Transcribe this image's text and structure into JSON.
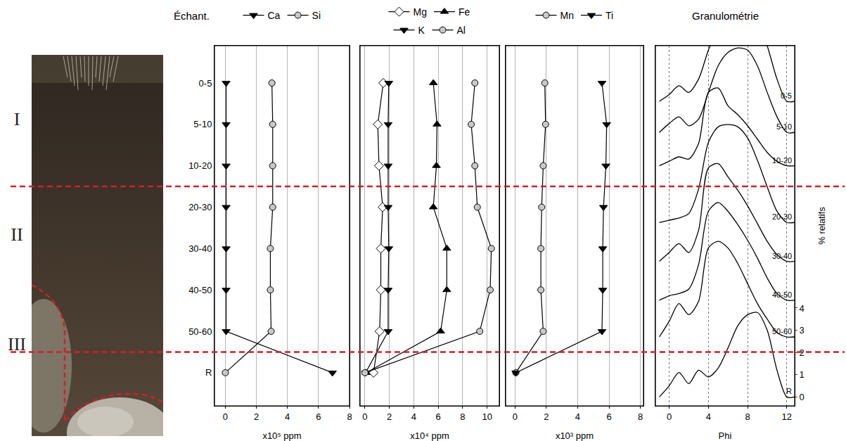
{
  "profile": {
    "horizons": [
      "I",
      "II",
      "III"
    ],
    "boundaries_after": [
      "10-20",
      "50-60"
    ]
  },
  "chart_data": [
    {
      "type": "line",
      "orientation": "horizontal",
      "ylabel": "Échant.",
      "xlabel": "x10⁵ ppm",
      "categories": [
        "0-5",
        "5-10",
        "10-20",
        "20-30",
        "30-40",
        "40-50",
        "50-60",
        "R"
      ],
      "xlim": [
        -0.7,
        8
      ],
      "xticks": [
        0,
        2,
        4,
        6,
        8
      ],
      "grid": true,
      "legend": "top",
      "series": [
        {
          "name": "Ca",
          "color": "#000000",
          "marker": "triangle-down",
          "values": [
            0.05,
            0.05,
            0.05,
            0.05,
            0.05,
            0.05,
            0.05,
            6.9
          ]
        },
        {
          "name": "Si",
          "color": "#000000",
          "marker": "circle",
          "values": [
            3.0,
            3.05,
            3.05,
            3.05,
            2.9,
            2.9,
            2.95,
            0
          ]
        }
      ]
    },
    {
      "type": "line",
      "orientation": "horizontal",
      "xlabel": "x10⁴ ppm",
      "tick_labels": "x",
      "categories": [
        "0-5",
        "5-10",
        "10-20",
        "20-30",
        "30-40",
        "40-50",
        "50-60",
        "R"
      ],
      "xlim": [
        -0.4,
        11
      ],
      "xticks": [
        0,
        2,
        4,
        6,
        8,
        10
      ],
      "grid": true,
      "legend": "top",
      "series": [
        {
          "name": "Mg",
          "color": "#000000",
          "marker": "diamond-open",
          "values": [
            1.5,
            1.05,
            1.15,
            1.45,
            1.3,
            1.3,
            1.2,
            0.7
          ]
        },
        {
          "name": "Fe",
          "color": "#000000",
          "marker": "triangle-up",
          "values": [
            5.6,
            5.9,
            5.85,
            5.6,
            6.7,
            6.7,
            6.2,
            0.1
          ]
        },
        {
          "name": "K",
          "color": "#000000",
          "marker": "triangle-down",
          "values": [
            1.95,
            1.9,
            1.9,
            1.9,
            1.95,
            1.9,
            1.9,
            0.05
          ]
        },
        {
          "name": "Al",
          "color": "#000000",
          "marker": "circle",
          "values": [
            9.0,
            8.7,
            9.0,
            9.2,
            10.35,
            10.25,
            9.4,
            0
          ]
        }
      ]
    },
    {
      "type": "line",
      "orientation": "horizontal",
      "xlabel": "x10³ ppm",
      "tick_labels": "x",
      "categories": [
        "0-5",
        "5-10",
        "10-20",
        "20-30",
        "30-40",
        "40-50",
        "50-60",
        "R"
      ],
      "xlim": [
        -0.6,
        8.2
      ],
      "xticks": [
        0,
        2,
        4,
        6,
        8
      ],
      "grid": true,
      "legend": "top",
      "series": [
        {
          "name": "Mn",
          "color": "#000000",
          "marker": "circle",
          "values": [
            1.9,
            1.95,
            1.8,
            1.7,
            1.65,
            1.65,
            1.8,
            0.05
          ]
        },
        {
          "name": "Ti",
          "color": "#000000",
          "marker": "triangle-down",
          "values": [
            5.55,
            5.85,
            5.8,
            5.65,
            5.6,
            5.6,
            5.55,
            0.05
          ]
        }
      ]
    },
    {
      "type": "line",
      "title": "Granulométrie",
      "xlabel": "Phi",
      "ylabel": "% relatifs",
      "x": [
        -1,
        0,
        1,
        2,
        3,
        4,
        5,
        6,
        7,
        8,
        9,
        10,
        11,
        12
      ],
      "xlim": [
        -1.4,
        12.8
      ],
      "xticks": [
        0,
        4,
        8,
        12
      ],
      "ylim": [
        -0.4,
        15.8
      ],
      "yticks": [
        0,
        1,
        2,
        3,
        4
      ],
      "grid": true,
      "series": [
        {
          "name": "0-5",
          "color": "#000000",
          "baseline": 13.3,
          "values": [
            0,
            0.3,
            0.7,
            0.4,
            1.0,
            2.3,
            3.3,
            3.8,
            4.0,
            4.1,
            3.7,
            2.5,
            1.0,
            0
          ]
        },
        {
          "name": "5-10",
          "color": "#000000",
          "baseline": 11.9,
          "values": [
            0,
            0.4,
            0.7,
            0.3,
            0.6,
            1.8,
            3.0,
            3.6,
            3.8,
            3.7,
            3.0,
            1.8,
            0.7,
            0
          ]
        },
        {
          "name": "10-20",
          "color": "#000000",
          "baseline": 10.4,
          "values": [
            0,
            0.2,
            0.4,
            0.3,
            1.0,
            3.3,
            3.5,
            2.7,
            2.3,
            1.8,
            1.2,
            0.6,
            0.2,
            0
          ]
        },
        {
          "name": "20-30",
          "color": "#000000",
          "baseline": 7.85,
          "values": [
            0,
            0.1,
            0.2,
            0.4,
            1.5,
            3.6,
            4.3,
            4.4,
            4.3,
            3.8,
            2.8,
            1.6,
            0.5,
            0
          ]
        },
        {
          "name": "30-40",
          "color": "#000000",
          "baseline": 6.1,
          "values": [
            0,
            0.4,
            0.8,
            0.4,
            1.4,
            4.2,
            4.4,
            3.8,
            3.2,
            2.5,
            1.7,
            0.9,
            0.3,
            0
          ]
        },
        {
          "name": "40-50",
          "color": "#000000",
          "baseline": 4.35,
          "values": [
            0,
            0.2,
            0.3,
            0.5,
            1.6,
            4.0,
            4.4,
            4.0,
            3.4,
            2.7,
            1.9,
            1.0,
            0.3,
            0
          ]
        },
        {
          "name": "50-60",
          "color": "#000000",
          "baseline": 2.7,
          "values": [
            0,
            0.7,
            1.5,
            1.0,
            1.6,
            4.0,
            4.3,
            4.0,
            3.3,
            2.4,
            1.5,
            0.8,
            0.2,
            0
          ]
        },
        {
          "name": "R",
          "color": "#000000",
          "baseline": 0,
          "values": [
            0,
            0.5,
            1.1,
            0.6,
            1.2,
            0.9,
            1.3,
            2.2,
            3.2,
            3.7,
            3.8,
            3.0,
            1.2,
            0
          ]
        }
      ]
    }
  ]
}
